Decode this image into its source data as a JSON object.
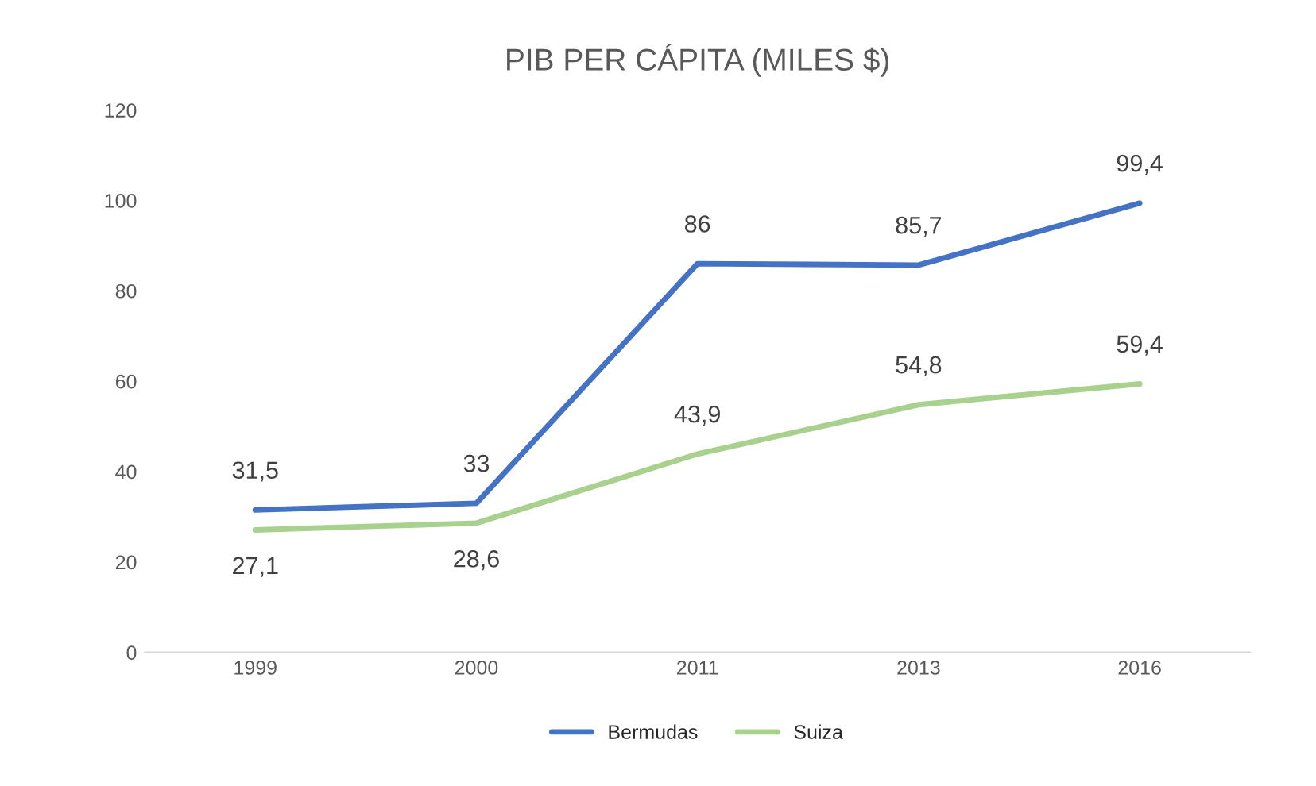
{
  "chart_data": {
    "type": "line",
    "title": "PIB PER CÁPITA (MILES $)",
    "categories": [
      "1999",
      "2000",
      "2011",
      "2013",
      "2016"
    ],
    "series": [
      {
        "name": "Bermudas",
        "color": "#4472c4",
        "values": [
          31.5,
          33,
          86,
          85.7,
          99.4
        ],
        "value_labels": [
          "31,5",
          "33",
          "86",
          "85,7",
          "99,4"
        ]
      },
      {
        "name": "Suiza",
        "color": "#a9d18e",
        "values": [
          27.1,
          28.6,
          43.9,
          54.8,
          59.4
        ],
        "value_labels": [
          "27,1",
          "28,6",
          "43,9",
          "54,8",
          "59,4"
        ]
      }
    ],
    "ylim": [
      0,
      120
    ],
    "yticks": [
      0,
      20,
      40,
      60,
      80,
      100,
      120
    ],
    "grid": false,
    "legend": "bottom",
    "marker": "none",
    "line_style": "solid"
  }
}
